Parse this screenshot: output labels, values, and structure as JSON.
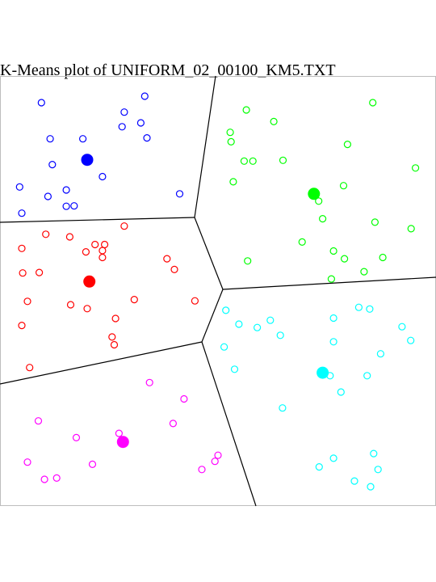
{
  "chart_data": {
    "type": "scatter",
    "title": "K-Means plot of UNIFORM_02_00100_KM5.TXT",
    "xlabel": "",
    "ylabel": "",
    "xlim": [
      0,
      1
    ],
    "ylim": [
      0,
      1
    ],
    "grid": false,
    "legend": "none",
    "clusters": [
      {
        "color": "#0000ff",
        "centroid": [
          0.2,
          0.805
        ],
        "points": [
          [
            0.095,
            0.938
          ],
          [
            0.332,
            0.953
          ],
          [
            0.285,
            0.916
          ],
          [
            0.323,
            0.891
          ],
          [
            0.28,
            0.882
          ],
          [
            0.337,
            0.856
          ],
          [
            0.115,
            0.854
          ],
          [
            0.19,
            0.854
          ],
          [
            0.12,
            0.794
          ],
          [
            0.235,
            0.766
          ],
          [
            0.045,
            0.742
          ],
          [
            0.152,
            0.735
          ],
          [
            0.11,
            0.72
          ],
          [
            0.412,
            0.726
          ],
          [
            0.152,
            0.697
          ],
          [
            0.17,
            0.698
          ],
          [
            0.05,
            0.681
          ]
        ]
      },
      {
        "color": "#00ff00",
        "centroid": [
          0.72,
          0.726
        ],
        "points": [
          [
            0.855,
            0.938
          ],
          [
            0.565,
            0.921
          ],
          [
            0.628,
            0.894
          ],
          [
            0.528,
            0.869
          ],
          [
            0.53,
            0.847
          ],
          [
            0.797,
            0.841
          ],
          [
            0.56,
            0.802
          ],
          [
            0.58,
            0.802
          ],
          [
            0.649,
            0.804
          ],
          [
            0.953,
            0.786
          ],
          [
            0.535,
            0.754
          ],
          [
            0.788,
            0.745
          ],
          [
            0.731,
            0.709
          ],
          [
            0.74,
            0.668
          ],
          [
            0.86,
            0.66
          ],
          [
            0.943,
            0.645
          ],
          [
            0.693,
            0.614
          ],
          [
            0.765,
            0.593
          ],
          [
            0.79,
            0.575
          ],
          [
            0.878,
            0.578
          ],
          [
            0.568,
            0.57
          ],
          [
            0.835,
            0.545
          ],
          [
            0.76,
            0.528
          ]
        ]
      },
      {
        "color": "#ff0000",
        "centroid": [
          0.205,
          0.522
        ],
        "points": [
          [
            0.285,
            0.651
          ],
          [
            0.105,
            0.632
          ],
          [
            0.16,
            0.626
          ],
          [
            0.218,
            0.608
          ],
          [
            0.24,
            0.608
          ],
          [
            0.05,
            0.599
          ],
          [
            0.197,
            0.591
          ],
          [
            0.235,
            0.594
          ],
          [
            0.235,
            0.578
          ],
          [
            0.383,
            0.575
          ],
          [
            0.052,
            0.542
          ],
          [
            0.09,
            0.543
          ],
          [
            0.4,
            0.55
          ],
          [
            0.063,
            0.476
          ],
          [
            0.308,
            0.48
          ],
          [
            0.447,
            0.477
          ],
          [
            0.162,
            0.468
          ],
          [
            0.2,
            0.459
          ],
          [
            0.265,
            0.436
          ],
          [
            0.05,
            0.42
          ],
          [
            0.257,
            0.393
          ],
          [
            0.262,
            0.375
          ],
          [
            0.068,
            0.322
          ]
        ]
      },
      {
        "color": "#00ffff",
        "centroid": [
          0.74,
          0.31
        ],
        "points": [
          [
            0.823,
            0.462
          ],
          [
            0.848,
            0.458
          ],
          [
            0.518,
            0.455
          ],
          [
            0.765,
            0.437
          ],
          [
            0.548,
            0.423
          ],
          [
            0.62,
            0.432
          ],
          [
            0.59,
            0.415
          ],
          [
            0.922,
            0.417
          ],
          [
            0.643,
            0.397
          ],
          [
            0.942,
            0.385
          ],
          [
            0.765,
            0.382
          ],
          [
            0.514,
            0.37
          ],
          [
            0.873,
            0.354
          ],
          [
            0.538,
            0.318
          ],
          [
            0.842,
            0.303
          ],
          [
            0.757,
            0.303
          ],
          [
            0.782,
            0.265
          ],
          [
            0.648,
            0.228
          ],
          [
            0.857,
            0.122
          ],
          [
            0.765,
            0.111
          ],
          [
            0.732,
            0.091
          ],
          [
            0.867,
            0.085
          ],
          [
            0.813,
            0.058
          ],
          [
            0.85,
            0.045
          ]
        ]
      },
      {
        "color": "#ff00ff",
        "centroid": [
          0.282,
          0.149
        ],
        "points": [
          [
            0.343,
            0.287
          ],
          [
            0.422,
            0.249
          ],
          [
            0.088,
            0.198
          ],
          [
            0.397,
            0.192
          ],
          [
            0.175,
            0.159
          ],
          [
            0.273,
            0.169
          ],
          [
            0.5,
            0.118
          ],
          [
            0.493,
            0.104
          ],
          [
            0.063,
            0.102
          ],
          [
            0.212,
            0.097
          ],
          [
            0.463,
            0.085
          ],
          [
            0.13,
            0.065
          ],
          [
            0.102,
            0.062
          ]
        ]
      }
    ]
  }
}
